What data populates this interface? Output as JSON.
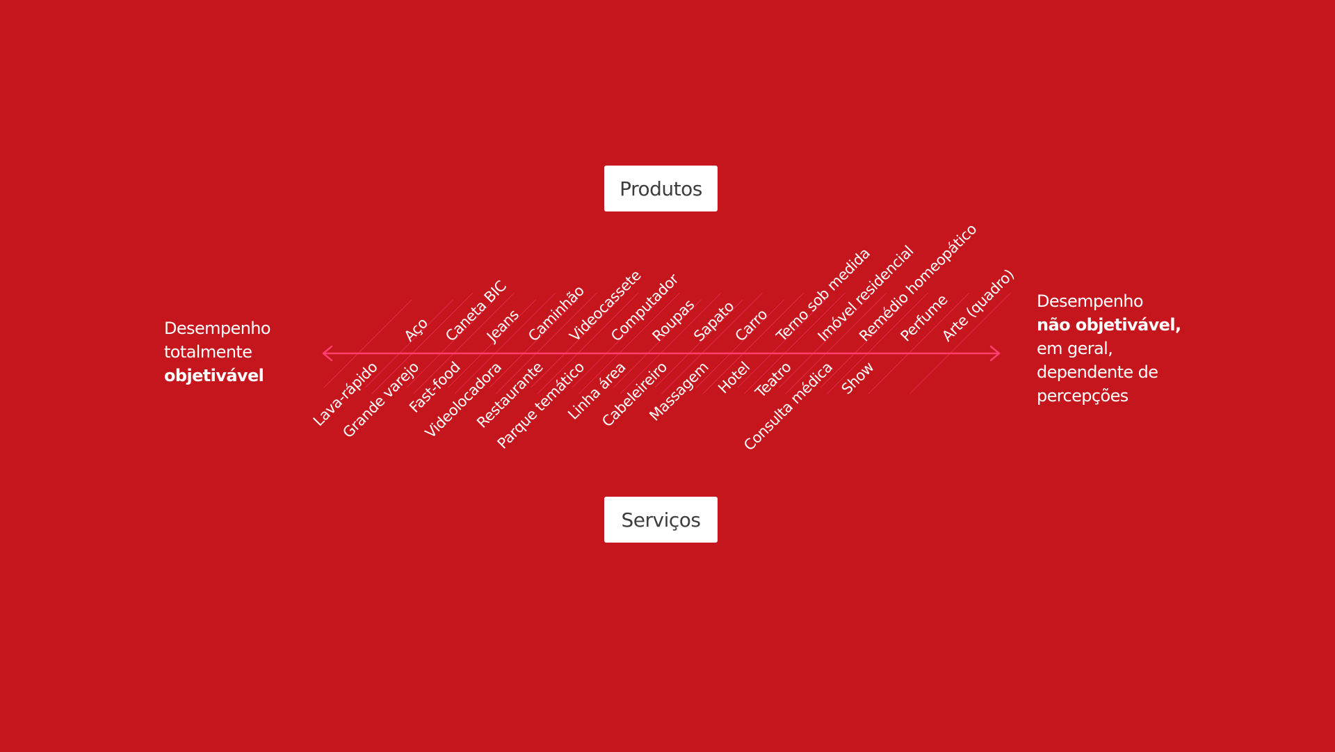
{
  "diagram": {
    "top_box": "Produtos",
    "bottom_box": "Serviços",
    "left_label": {
      "line1": "Desempenho",
      "line2": "totalmente",
      "line3_bold": "objetivável"
    },
    "right_label": {
      "line1": "Desempenho",
      "line2_bold": "não objetivável",
      "line2_tail": ",",
      "line3": "em geral,",
      "line4": "dependente de",
      "line5": "percepções"
    },
    "products": [
      "Aço",
      "Caneta BIC",
      "Jeans",
      "Caminhão",
      "Videocassete",
      "Computador",
      "Roupas",
      "Sapato",
      "Carro",
      "Terno sob medida",
      "Imóvel residencial",
      "Remédio homeopático",
      "Perfume",
      "Arte (quadro)"
    ],
    "services": [
      "Lava-rápido",
      "Grande varejo",
      "Fast-food",
      "Videolocadora",
      "Restaurante",
      "Parque temático",
      "Linha área",
      "Cabeleireiro",
      "Massagem",
      "Hotel",
      "Teatro",
      "Consulta médica",
      "Show"
    ]
  },
  "colors": {
    "background": "#c4161c",
    "axis": "#ff3d6e",
    "box": "#ffffff",
    "box_text": "#3d3d3d",
    "label_text": "#ffffff"
  }
}
